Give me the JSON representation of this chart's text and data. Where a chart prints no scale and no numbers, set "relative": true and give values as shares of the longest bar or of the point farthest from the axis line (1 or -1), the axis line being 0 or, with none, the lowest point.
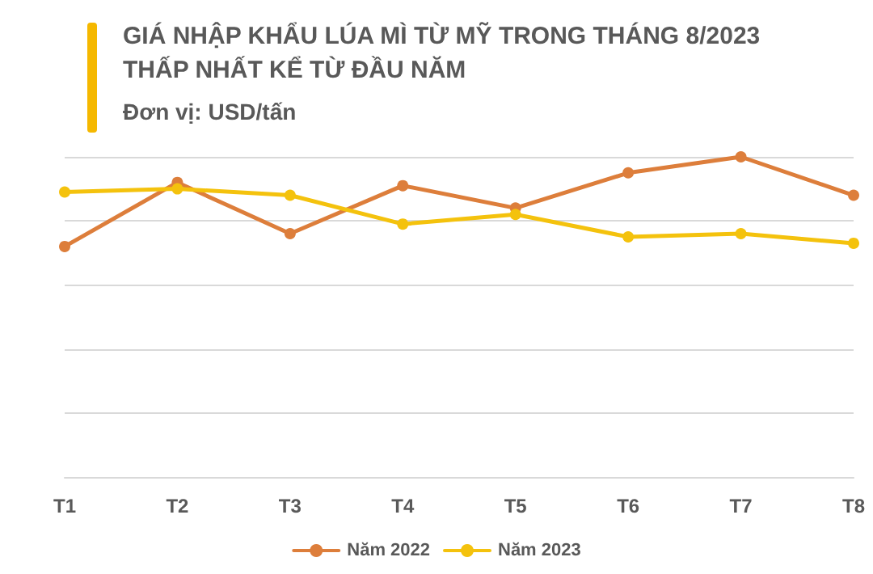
{
  "chart_data": {
    "type": "line",
    "title": "GIÁ NHẬP KHẨU LÚA MÌ TỪ MỸ TRONG THÁNG 8/2023 THẤP NHẤT KỂ TỪ ĐẦU NĂM",
    "subtitle": "Đơn vị: USD/tấn",
    "categories": [
      "T1",
      "T2",
      "T3",
      "T4",
      "T5",
      "T6",
      "T7",
      "T8"
    ],
    "series": [
      {
        "name": "Năm 2022",
        "color": "#dd7e3b",
        "values": [
          0.72,
          0.92,
          0.76,
          0.91,
          0.84,
          0.95,
          1,
          0.88
        ]
      },
      {
        "name": "Năm 2023",
        "color": "#f4c20d",
        "values": [
          0.89,
          0.9,
          0.88,
          0.79,
          0.82,
          0.75,
          0.76,
          0.73
        ]
      }
    ],
    "relative": true,
    "grid": "y",
    "legend": "bottom",
    "marker": "circle",
    "line_style": "solid"
  }
}
